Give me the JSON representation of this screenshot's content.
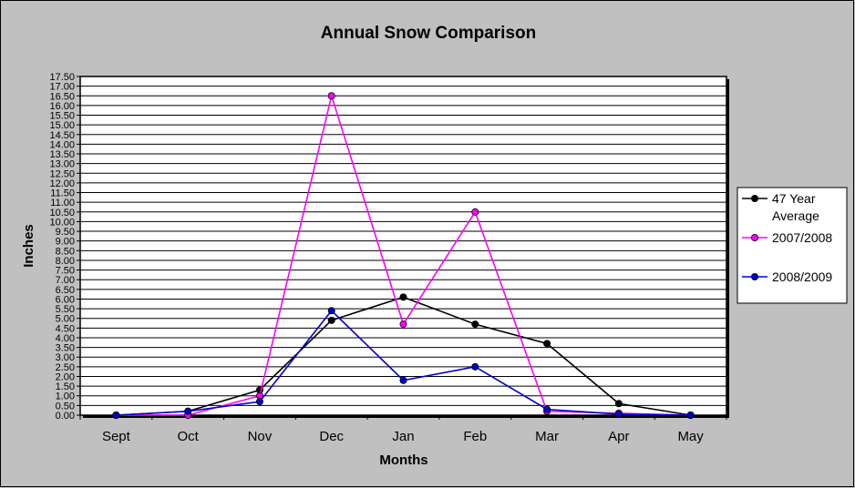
{
  "chart_data": {
    "type": "line",
    "title": "Annual Snow Comparison",
    "xlabel": "Months",
    "ylabel": "Inches",
    "categories": [
      "Sept",
      "Oct",
      "Nov",
      "Dec",
      "Jan",
      "Feb",
      "Mar",
      "Apr",
      "May"
    ],
    "ylim": [
      0,
      17.5
    ],
    "ytick_step": 0.5,
    "grid": true,
    "legend_position": "right",
    "series": [
      {
        "name": "47 Year Average",
        "legend_lines": [
          "47 Year",
          "Average"
        ],
        "color": "#000000",
        "values": [
          0,
          0.2,
          1.3,
          4.9,
          6.1,
          4.7,
          3.7,
          0.6,
          0.0
        ]
      },
      {
        "name": "2007/2008",
        "legend_lines": [
          "2007/2008"
        ],
        "color": "#ff00ff",
        "values": [
          0,
          0.0,
          1.0,
          16.5,
          4.7,
          10.5,
          0.2,
          0.1,
          0.0
        ]
      },
      {
        "name": "2008/2009",
        "legend_lines": [
          "2008/2009"
        ],
        "color": "#0000cc",
        "values": [
          0,
          0.2,
          0.7,
          5.4,
          1.8,
          2.5,
          0.3,
          0.05,
          0.0
        ]
      }
    ]
  }
}
